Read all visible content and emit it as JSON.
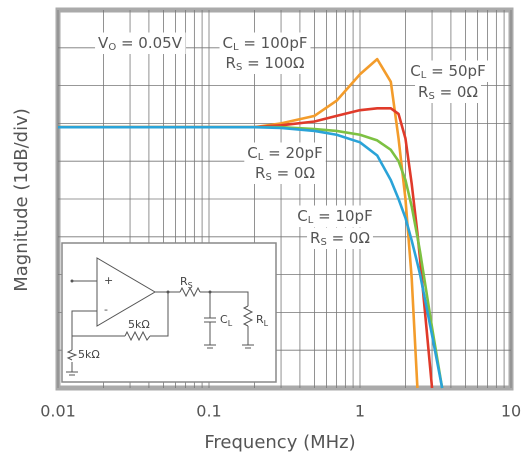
{
  "chart_data": {
    "type": "line",
    "x_label": "Frequency (MHz)",
    "y_label": "Magnitude (1dB/div)",
    "log_x": true,
    "grid": true,
    "xlim": [
      0.01,
      10
    ],
    "xticks": [
      0.01,
      0.1,
      1,
      10
    ],
    "xminor_ticks": [
      0.02,
      0.03,
      0.04,
      0.05,
      0.06,
      0.07,
      0.08,
      0.09,
      0.2,
      0.3,
      0.4,
      0.5,
      0.6,
      0.7,
      0.8,
      0.9,
      2,
      3,
      4,
      5,
      6,
      7,
      8,
      9
    ],
    "ylim": [
      -6.9,
      3.1
    ],
    "yticks": [
      -5.9,
      -4.9,
      -3.9,
      -2.9,
      -1.9,
      -0.9,
      0.1,
      1.1,
      2.1
    ],
    "x": [
      0.01,
      0.1,
      0.2,
      0.3,
      0.5,
      0.7,
      1,
      1.3,
      1.6,
      1.8,
      2,
      2.2,
      2.4,
      2.5,
      3,
      3.5
    ],
    "series": [
      {
        "color": "#f39c2b",
        "values": [
          0,
          0,
          0,
          0.1,
          0.3,
          0.7,
          1.4,
          1.8,
          1.2,
          -0.3,
          -1.9,
          -4,
          -6.9,
          null,
          null,
          null
        ]
      },
      {
        "color": "#e03a2a",
        "values": [
          0,
          0,
          0,
          0.05,
          0.15,
          0.3,
          0.45,
          0.5,
          0.5,
          0.35,
          -0.3,
          -1.5,
          -2.8,
          -3.5,
          -6.9,
          null
        ]
      },
      {
        "color": "#7dc142",
        "values": [
          0,
          0,
          0,
          0,
          -0.05,
          -0.1,
          -0.2,
          -0.35,
          -0.6,
          -0.9,
          -1.4,
          -2.1,
          -2.9,
          -3.3,
          -5.3,
          -6.9
        ]
      },
      {
        "color": "#2aa3d8",
        "values": [
          0,
          0,
          0,
          -0.02,
          -0.1,
          -0.2,
          -0.4,
          -0.75,
          -1.4,
          -1.9,
          -2.4,
          -3,
          -3.6,
          -3.9,
          -5.5,
          -6.9
        ]
      }
    ],
    "annotations": [
      {
        "text": "V",
        "sub": "O",
        "rest": " = 0.05V"
      },
      {
        "text": "C",
        "sub": "L",
        "rest": " = 100pF"
      },
      {
        "text": "R",
        "sub": "S",
        "rest": " = 100Ω"
      },
      {
        "text": "C",
        "sub": "L",
        "rest": " = 50pF"
      },
      {
        "text": "R",
        "sub": "S",
        "rest": " = 0Ω"
      },
      {
        "text": "C",
        "sub": "L",
        "rest": " = 20pF"
      },
      {
        "text": "R",
        "sub": "S",
        "rest": " = 0Ω"
      },
      {
        "text": "C",
        "sub": "L",
        "rest": " = 10pF"
      },
      {
        "text": "R",
        "sub": "S",
        "rest": " = 0Ω"
      }
    ]
  },
  "inset": {
    "plus": "+",
    "minus": "-",
    "rf": "5kΩ",
    "rg": "5kΩ",
    "rs": {
      "text": "R",
      "sub": "S"
    },
    "cl": {
      "text": "C",
      "sub": "L"
    },
    "rl": {
      "text": "R",
      "sub": "L"
    }
  }
}
